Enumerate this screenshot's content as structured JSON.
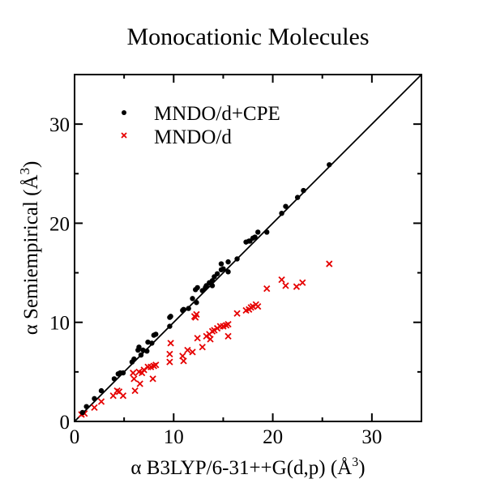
{
  "chart_data": {
    "type": "scatter",
    "title": "Monocationic Molecules",
    "xlabel": "α B3LYP/6-31++G(d,p) (Å³)",
    "xlabel_parts": {
      "prefix": "α B3LYP/6-31++G(d,p) (Å",
      "sup": "3",
      "suffix": ")"
    },
    "ylabel": "α Semiempirical (Å³)",
    "ylabel_parts": {
      "prefix": "α Semiempirical (Å",
      "sup": "3",
      "suffix": ")"
    },
    "xlim": [
      0,
      35
    ],
    "ylim": [
      0,
      35
    ],
    "x_major_ticks": [
      0,
      10,
      20,
      30
    ],
    "y_major_ticks": [
      0,
      10,
      20,
      30
    ],
    "x_tick_labels": [
      "0",
      "10",
      "20",
      "30"
    ],
    "y_tick_labels": [
      "0",
      "10",
      "20",
      "30"
    ],
    "minor_tick_step": 5,
    "grid": false,
    "reference_line": {
      "type": "y=x",
      "color": "#000000"
    },
    "legend": {
      "placement": "top-left"
    },
    "series": [
      {
        "name": "MNDO/d+CPE",
        "marker": "circle",
        "color": "#000000",
        "points": [
          [
            0.8,
            0.9
          ],
          [
            1.2,
            1.5
          ],
          [
            2.0,
            2.3
          ],
          [
            2.7,
            3.1
          ],
          [
            4.0,
            4.3
          ],
          [
            4.4,
            4.8
          ],
          [
            4.6,
            4.9
          ],
          [
            4.9,
            4.9
          ],
          [
            5.8,
            6.0
          ],
          [
            6.0,
            6.3
          ],
          [
            6.4,
            7.2
          ],
          [
            6.5,
            7.5
          ],
          [
            6.7,
            6.7
          ],
          [
            6.9,
            7.2
          ],
          [
            7.3,
            7.1
          ],
          [
            7.4,
            8.0
          ],
          [
            7.8,
            7.9
          ],
          [
            8.0,
            8.7
          ],
          [
            8.2,
            8.8
          ],
          [
            9.6,
            9.6
          ],
          [
            9.6,
            10.5
          ],
          [
            9.7,
            10.6
          ],
          [
            10.9,
            11.2
          ],
          [
            11.0,
            11.3
          ],
          [
            11.5,
            11.4
          ],
          [
            11.9,
            12.4
          ],
          [
            12.3,
            12.0
          ],
          [
            12.2,
            13.3
          ],
          [
            12.4,
            13.5
          ],
          [
            12.9,
            13.2
          ],
          [
            13.2,
            13.5
          ],
          [
            13.3,
            13.7
          ],
          [
            13.6,
            14.0
          ],
          [
            13.9,
            14.2
          ],
          [
            13.9,
            13.7
          ],
          [
            14.1,
            14.6
          ],
          [
            14.4,
            14.9
          ],
          [
            14.8,
            15.3
          ],
          [
            14.8,
            15.9
          ],
          [
            15.0,
            15.4
          ],
          [
            15.5,
            15.1
          ],
          [
            15.5,
            16.1
          ],
          [
            16.4,
            16.4
          ],
          [
            17.3,
            18.1
          ],
          [
            17.6,
            18.2
          ],
          [
            17.7,
            18.2
          ],
          [
            18.0,
            18.5
          ],
          [
            18.2,
            18.6
          ],
          [
            18.5,
            19.1
          ],
          [
            19.4,
            19.1
          ],
          [
            20.9,
            21.0
          ],
          [
            21.3,
            21.7
          ],
          [
            22.5,
            22.6
          ],
          [
            23.1,
            23.3
          ],
          [
            25.7,
            25.9
          ]
        ]
      },
      {
        "name": "MNDO/d",
        "marker": "x",
        "color": "#e60000",
        "points": [
          [
            0.7,
            0.7
          ],
          [
            1.0,
            0.8
          ],
          [
            2.0,
            1.4
          ],
          [
            2.7,
            2.0
          ],
          [
            3.9,
            2.6
          ],
          [
            4.3,
            3.1
          ],
          [
            4.5,
            3.0
          ],
          [
            4.9,
            2.6
          ],
          [
            5.9,
            4.9
          ],
          [
            6.0,
            4.3
          ],
          [
            6.1,
            3.1
          ],
          [
            6.5,
            5.0
          ],
          [
            6.6,
            3.8
          ],
          [
            6.8,
            4.9
          ],
          [
            7.0,
            5.2
          ],
          [
            7.4,
            5.5
          ],
          [
            7.7,
            5.5
          ],
          [
            7.9,
            4.3
          ],
          [
            8.0,
            5.6
          ],
          [
            8.2,
            5.7
          ],
          [
            9.6,
            6.0
          ],
          [
            9.6,
            6.8
          ],
          [
            9.7,
            7.9
          ],
          [
            10.9,
            6.6
          ],
          [
            11.0,
            6.1
          ],
          [
            11.4,
            7.2
          ],
          [
            11.9,
            7.0
          ],
          [
            12.1,
            10.6
          ],
          [
            12.2,
            10.5
          ],
          [
            12.3,
            10.8
          ],
          [
            12.4,
            8.4
          ],
          [
            12.9,
            7.5
          ],
          [
            13.3,
            8.6
          ],
          [
            13.6,
            8.8
          ],
          [
            13.7,
            8.3
          ],
          [
            13.9,
            9.1
          ],
          [
            14.1,
            9.2
          ],
          [
            14.4,
            9.4
          ],
          [
            14.7,
            9.6
          ],
          [
            15.0,
            9.6
          ],
          [
            15.3,
            9.7
          ],
          [
            15.5,
            9.8
          ],
          [
            15.5,
            8.6
          ],
          [
            16.4,
            10.9
          ],
          [
            17.3,
            11.2
          ],
          [
            17.6,
            11.3
          ],
          [
            17.8,
            11.5
          ],
          [
            18.0,
            11.6
          ],
          [
            18.3,
            11.8
          ],
          [
            18.5,
            11.6
          ],
          [
            19.4,
            13.4
          ],
          [
            20.9,
            14.3
          ],
          [
            21.3,
            13.7
          ],
          [
            22.4,
            13.6
          ],
          [
            23.0,
            14.0
          ],
          [
            25.7,
            15.9
          ]
        ]
      }
    ]
  }
}
